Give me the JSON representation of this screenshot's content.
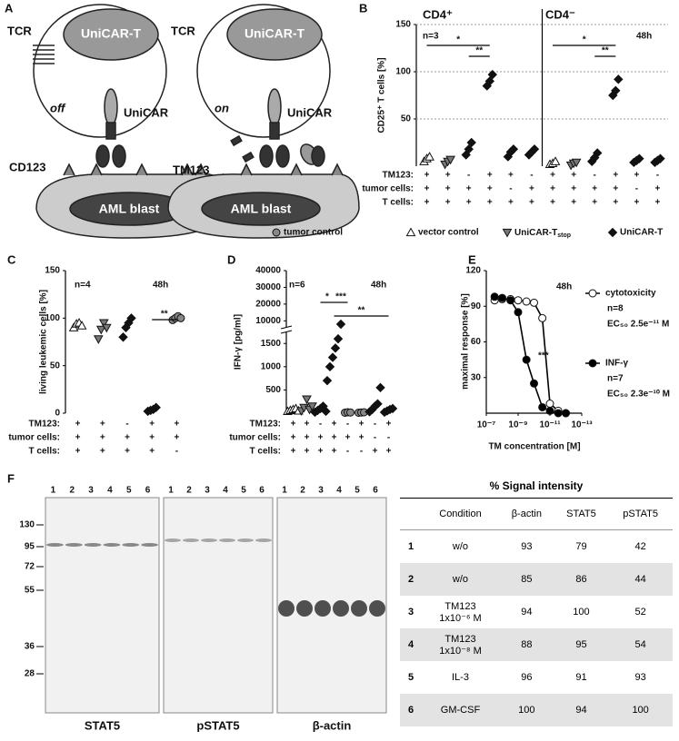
{
  "panel_a": {
    "label": "A",
    "left": {
      "tcr": "TCR",
      "cell": "UniCAR-T",
      "state": "off",
      "car": "UniCAR",
      "antigen": "CD123",
      "blast": "AML blast"
    },
    "right": {
      "tcr": "TCR",
      "cell": "UniCAR-T",
      "state": "on",
      "car": "UniCAR",
      "module": "TM123",
      "blast": "AML blast"
    }
  },
  "legend": {
    "items": [
      {
        "name": "tumor control",
        "marker": "circle",
        "color": "#888888"
      },
      {
        "name": "vector control",
        "marker": "triangle",
        "color": "#ffffff"
      },
      {
        "name": "UniCAR-T",
        "sub": "stop",
        "marker": "down",
        "color": "#777777"
      },
      {
        "name": "UniCAR-T",
        "marker": "diamond",
        "color": "#111111"
      }
    ]
  },
  "panel_b": {
    "type": "scatter",
    "label": "B",
    "ylabel": "CD25⁺ T cells [%]",
    "groups": [
      "CD4⁺",
      "CD4⁻"
    ],
    "n": "n=3",
    "time": "48h",
    "ylim": [
      0,
      150
    ],
    "yticks": [
      50,
      100,
      150
    ],
    "grid": true,
    "markers": [
      "triangle",
      "down",
      "diamond",
      "diamond",
      "diamond",
      "diamond",
      "triangle",
      "down",
      "diamond",
      "diamond",
      "diamond",
      "diamond"
    ],
    "points": [
      [
        5,
        8,
        10
      ],
      [
        2,
        5,
        7
      ],
      [
        12,
        18,
        25
      ],
      [
        85,
        90,
        97
      ],
      [
        10,
        15,
        18
      ],
      [
        12,
        15,
        18
      ],
      [
        2,
        3,
        5
      ],
      [
        1,
        3,
        4
      ],
      [
        5,
        9,
        14
      ],
      [
        75,
        80,
        92
      ],
      [
        4,
        6,
        8
      ],
      [
        4,
        6,
        8
      ]
    ],
    "rows": [
      {
        "label": "TM123:",
        "signs": [
          "+",
          "+",
          "-",
          "+",
          "+",
          "-",
          "+",
          "+",
          "-",
          "+",
          "+",
          "-"
        ]
      },
      {
        "label": "tumor cells:",
        "signs": [
          "+",
          "+",
          "+",
          "+",
          "-",
          "+",
          "+",
          "+",
          "+",
          "+",
          "-",
          "+"
        ]
      },
      {
        "label": "T cells:",
        "signs": [
          "+",
          "+",
          "+",
          "+",
          "+",
          "+",
          "+",
          "+",
          "+",
          "+",
          "+",
          "+"
        ]
      }
    ],
    "sig": [
      "*",
      "**",
      "*",
      "**"
    ]
  },
  "panel_c": {
    "type": "scatter",
    "label": "C",
    "ylabel": "living leukemic cells [%]",
    "n": "n=4",
    "time": "48h",
    "ylim": [
      0,
      150
    ],
    "yticks": [
      0,
      50,
      100,
      150
    ],
    "markers": [
      "triangle",
      "down",
      "diamond",
      "diamond",
      "circle"
    ],
    "points": [
      [
        90,
        94,
        95,
        92
      ],
      [
        78,
        88,
        95,
        90
      ],
      [
        80,
        90,
        95,
        100
      ],
      [
        2,
        3,
        4,
        6
      ],
      [
        98,
        100,
        102,
        100
      ]
    ],
    "rows": [
      {
        "label": "TM123:",
        "signs": [
          "+",
          "+",
          "-",
          "+",
          "+"
        ]
      },
      {
        "label": "tumor cells:",
        "signs": [
          "+",
          "+",
          "+",
          "+",
          "+"
        ]
      },
      {
        "label": "T cells:",
        "signs": [
          "+",
          "+",
          "+",
          "+",
          "-"
        ]
      }
    ],
    "sig": [
      "**"
    ]
  },
  "panel_d": {
    "type": "scatter",
    "label": "D",
    "ylabel": "IFN-γ [pg/ml]",
    "n": "n=6",
    "time": "48h",
    "ylim": [
      0,
      40000
    ],
    "ybreak": [
      1700,
      8000
    ],
    "yticks": [
      500,
      1000,
      1500,
      10000,
      20000,
      30000,
      40000
    ],
    "markers": [
      "triangle",
      "down",
      "diamond",
      "diamond",
      "circle",
      "circle",
      "diamond",
      "diamond"
    ],
    "points": [
      [
        40,
        60,
        80,
        100,
        50
      ],
      [
        50,
        120,
        300,
        80,
        150
      ],
      [
        20,
        60,
        100,
        150,
        40
      ],
      [
        700,
        1000,
        1200,
        1400,
        1600,
        8000
      ],
      [
        10,
        20,
        15
      ],
      [
        10,
        15,
        20
      ],
      [
        30,
        80,
        150,
        200,
        550
      ],
      [
        20,
        50,
        80,
        100
      ]
    ],
    "rows": [
      {
        "label": "TM123:",
        "signs": [
          "+",
          "+",
          "-",
          "+",
          "-",
          "+",
          "-",
          "+"
        ]
      },
      {
        "label": "tumor cells:",
        "signs": [
          "+",
          "+",
          "+",
          "+",
          "+",
          "+",
          "-",
          "-"
        ]
      },
      {
        "label": "T cells:",
        "signs": [
          "+",
          "+",
          "+",
          "+",
          "-",
          "-",
          "+",
          "+"
        ]
      }
    ],
    "sig": [
      "*",
      "***",
      "**"
    ]
  },
  "panel_e": {
    "type": "line",
    "label": "E",
    "ylabel": "maximal response [%]",
    "xlabel": "TM concentration [M]",
    "time": "48h",
    "sig": "***",
    "log_x": true,
    "xlim": [
      1e-07,
      1e-13
    ],
    "ylim": [
      0,
      120
    ],
    "yticks": [
      30,
      60,
      90,
      120
    ],
    "xticks": [
      {
        "value": 1e-07,
        "label": "10⁻⁷"
      },
      {
        "value": 1e-09,
        "label": "10⁻⁹"
      },
      {
        "value": 1e-11,
        "label": "10⁻¹¹"
      },
      {
        "value": 1e-13,
        "label": "10⁻¹³"
      }
    ],
    "x": [
      3e-08,
      1e-08,
      3e-09,
      1e-09,
      3e-10,
      1e-10,
      3e-11,
      1e-11,
      3e-12,
      1e-12
    ],
    "series": [
      {
        "name": "cytotoxicity",
        "n": "n=8",
        "ec50": "EC₅₀ 2.5e⁻¹¹ M",
        "color": "#ffffff",
        "values": [
          95,
          96,
          96,
          95,
          94,
          93,
          80,
          8,
          2,
          0
        ]
      },
      {
        "name": "INF-γ",
        "n": "n=7",
        "ec50": "EC₅₀ 2.3e⁻¹⁰ M",
        "color": "#000000",
        "values": [
          98,
          97,
          95,
          85,
          45,
          25,
          5,
          2,
          0,
          0
        ]
      }
    ]
  },
  "panel_f": {
    "label": "F",
    "lanes": [
      "1",
      "2",
      "3",
      "4",
      "5",
      "6"
    ],
    "blots": [
      "STAT5",
      "pSTAT5",
      "β-actin"
    ],
    "markers": [
      "130",
      "95",
      "72",
      "55",
      "36",
      "28"
    ],
    "table": {
      "title": "% Signal intensity",
      "header": [
        "Condition",
        "β-actin",
        "STAT5",
        "pSTAT5"
      ],
      "rows": [
        {
          "num": "1",
          "condition": [
            "w/o"
          ],
          "values": [
            93,
            79,
            42
          ]
        },
        {
          "num": "2",
          "condition": [
            "w/o"
          ],
          "values": [
            85,
            86,
            44
          ]
        },
        {
          "num": "3",
          "condition": [
            "TM123",
            "1x10⁻⁶ M"
          ],
          "values": [
            94,
            100,
            52
          ]
        },
        {
          "num": "4",
          "condition": [
            "TM123",
            "1x10⁻⁸ M"
          ],
          "values": [
            88,
            95,
            54
          ]
        },
        {
          "num": "5",
          "condition": [
            "IL-3"
          ],
          "values": [
            96,
            91,
            93
          ]
        },
        {
          "num": "6",
          "condition": [
            "GM-CSF"
          ],
          "values": [
            100,
            94,
            100
          ]
        }
      ]
    }
  }
}
